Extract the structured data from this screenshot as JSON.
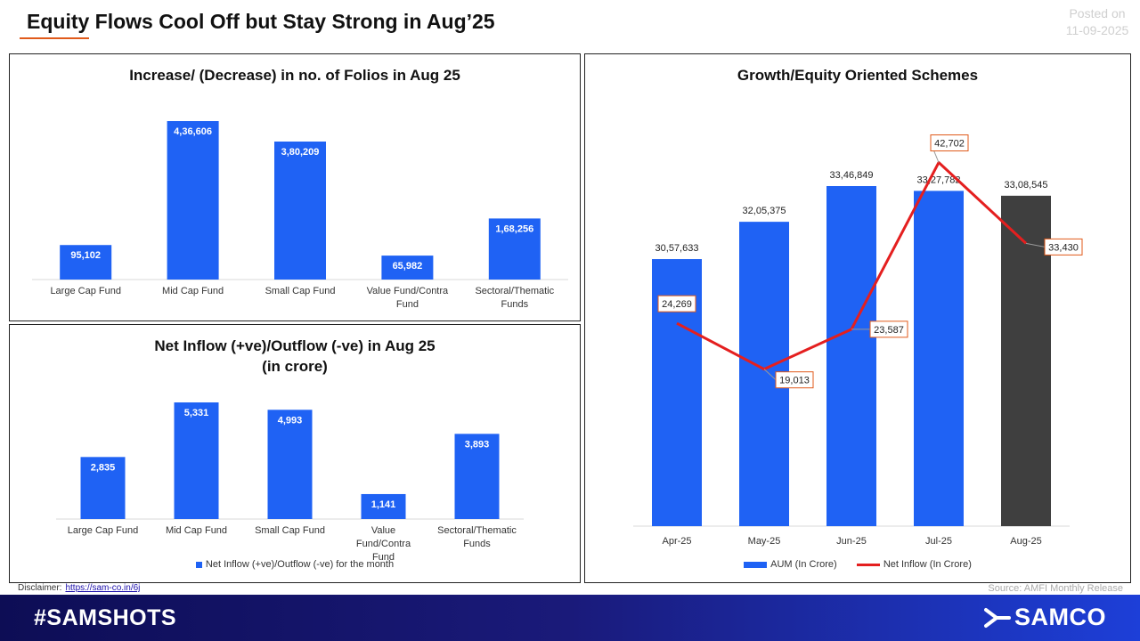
{
  "header": {
    "title": "Equity Flows Cool Off but Stay Strong in Aug’25",
    "posted_label": "Posted on",
    "posted_date": "11-09-2025"
  },
  "colors": {
    "bar": "#1f62f4",
    "bar_highlight": "#3f3f3f",
    "line": "#e41f1f",
    "accent": "#e05a1a"
  },
  "chart_data": [
    {
      "type": "bar",
      "title": "Increase/ (Decrease) in no. of Folios in Aug 25",
      "categories": [
        "Large Cap Fund",
        "Mid Cap Fund",
        "Small Cap Fund",
        "Value Fund/Contra Fund",
        "Sectoral/Thematic Funds"
      ],
      "values": [
        95102,
        436606,
        380209,
        65982,
        168256
      ],
      "data_labels": [
        "95,102",
        "4,36,606",
        "3,80,209",
        "65,982",
        "1,68,256"
      ]
    },
    {
      "type": "bar",
      "title": "Net Inflow (+ve)/Outflow (-ve) in Aug 25",
      "subtitle": "(in crore)",
      "categories": [
        "Large Cap Fund",
        "Mid Cap Fund",
        "Small Cap Fund",
        "Value Fund/Contra Fund",
        "Sectoral/Thematic Funds"
      ],
      "values": [
        2835,
        5331,
        4993,
        1141,
        3893
      ],
      "data_labels": [
        "2,835",
        "5,331",
        "4,993",
        "1,141",
        "3,893"
      ],
      "legend": "Net Inflow (+ve)/Outflow (-ve) for the month"
    },
    {
      "type": "bar",
      "title": "Growth/Equity Oriented Schemes",
      "categories": [
        "Apr-25",
        "May-25",
        "Jun-25",
        "Jul-25",
        "Aug-25"
      ],
      "series": [
        {
          "name": "AUM (In Crore)",
          "type": "bar",
          "values": [
            3057633,
            3205375,
            3346849,
            3327782,
            3308545
          ],
          "data_labels": [
            "30,57,633",
            "32,05,375",
            "33,46,849",
            "33,27,782",
            "33,08,545"
          ]
        },
        {
          "name": "Net Inflow (In Crore)",
          "type": "line",
          "values": [
            24269,
            19013,
            23587,
            42702,
            33430
          ],
          "data_labels": [
            "24,269",
            "19,013",
            "23,587",
            "42,702",
            "33,430"
          ]
        }
      ],
      "legend_position": "bottom"
    }
  ],
  "footer": {
    "disclaimer_label": "Disclaimer:",
    "disclaimer_link": "https://sam-co.in/6j",
    "source": "Source: AMFI Monthly Release",
    "hashtag": "#SAMSHOTS",
    "brand": "SAMCO"
  }
}
